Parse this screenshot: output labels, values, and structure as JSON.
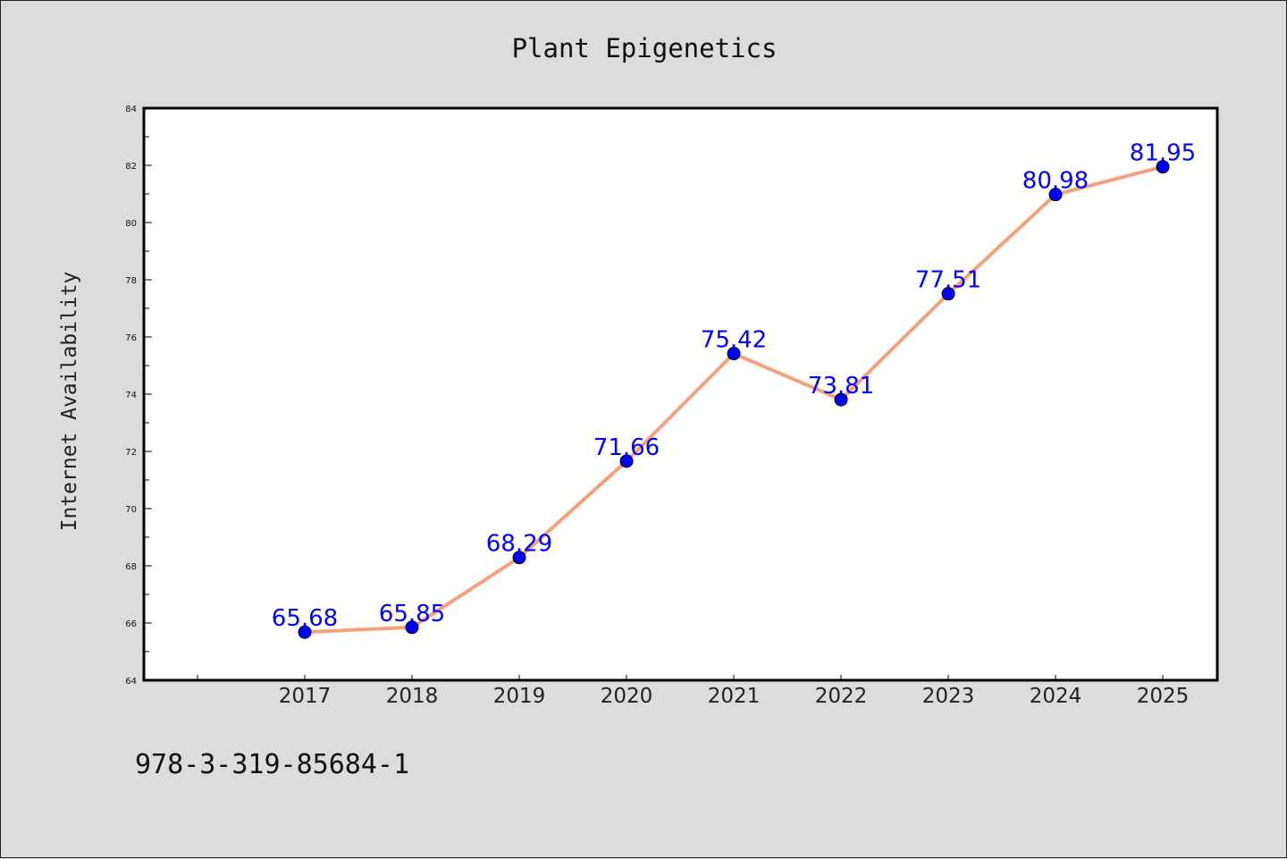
{
  "chart_data": {
    "type": "line",
    "title": "Plant Epigenetics",
    "xlabel": "",
    "ylabel": "Internet Availability",
    "categories": [
      "2017",
      "2018",
      "2019",
      "2020",
      "2021",
      "2022",
      "2023",
      "2024",
      "2025"
    ],
    "series": [
      {
        "values": [
          65.68,
          65.85,
          68.29,
          71.66,
          75.42,
          73.81,
          77.51,
          80.98,
          81.95
        ],
        "data_labels": [
          "65.68",
          "65.85",
          "68.29",
          "71.66",
          "75.42",
          "73.81",
          "77.51",
          "80.98",
          "81.95"
        ],
        "line_color": "#f4a07a",
        "marker_color": "#0000ff"
      }
    ],
    "ylim": [
      64,
      84
    ],
    "yticks": [
      "64",
      "66",
      "68",
      "70",
      "72",
      "74",
      "76",
      "78",
      "80",
      "82",
      "84"
    ],
    "grid": false,
    "background": "#dcdcdc",
    "plot_background": "#ffffff"
  },
  "footnote": "978-3-319-85684-1"
}
